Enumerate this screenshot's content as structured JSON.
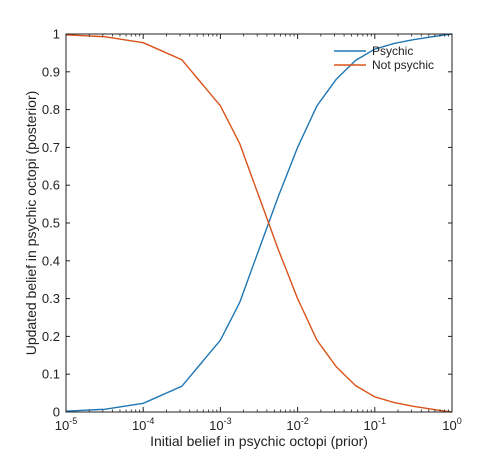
{
  "chart_data": {
    "type": "line",
    "xscale": "log",
    "xlim": [
      1e-05,
      1
    ],
    "ylim": [
      0,
      1
    ],
    "xlabel": "Initial belief in psychic octopi (prior)",
    "ylabel": "Updated belief in psychic octopi (posterior)",
    "xticks": [
      {
        "base": "10",
        "exp": "-5",
        "value": 1e-05
      },
      {
        "base": "10",
        "exp": "-4",
        "value": 0.0001
      },
      {
        "base": "10",
        "exp": "-3",
        "value": 0.001
      },
      {
        "base": "10",
        "exp": "-2",
        "value": 0.01
      },
      {
        "base": "10",
        "exp": "-1",
        "value": 0.1
      },
      {
        "base": "10",
        "exp": "0",
        "value": 1
      }
    ],
    "yticks": [
      "0",
      "0.1",
      "0.2",
      "0.3",
      "0.4",
      "0.5",
      "0.6",
      "0.7",
      "0.8",
      "0.9",
      "1"
    ],
    "grid": false,
    "legend_position": "top-right",
    "series": [
      {
        "name": "Psychic",
        "color": "#1f77b4",
        "x": [
          1e-05,
          3.16e-05,
          0.0001,
          0.000316,
          0.001,
          0.00178,
          0.00316,
          0.00562,
          0.01,
          0.0178,
          0.0316,
          0.0562,
          0.1,
          0.178,
          0.316,
          0.562,
          1
        ],
        "y": [
          0.0023,
          0.0072,
          0.023,
          0.068,
          0.19,
          0.29,
          0.43,
          0.57,
          0.7,
          0.81,
          0.88,
          0.93,
          0.96,
          0.975,
          0.985,
          0.993,
          1.0
        ]
      },
      {
        "name": "Not psychic",
        "color": "#d95319",
        "x": [
          1e-05,
          3.16e-05,
          0.0001,
          0.000316,
          0.001,
          0.00178,
          0.00316,
          0.00562,
          0.01,
          0.0178,
          0.0316,
          0.0562,
          0.1,
          0.178,
          0.316,
          0.562,
          1
        ],
        "y": [
          0.9977,
          0.9928,
          0.977,
          0.932,
          0.81,
          0.71,
          0.57,
          0.43,
          0.3,
          0.19,
          0.12,
          0.07,
          0.04,
          0.025,
          0.015,
          0.007,
          0.0
        ]
      }
    ]
  }
}
